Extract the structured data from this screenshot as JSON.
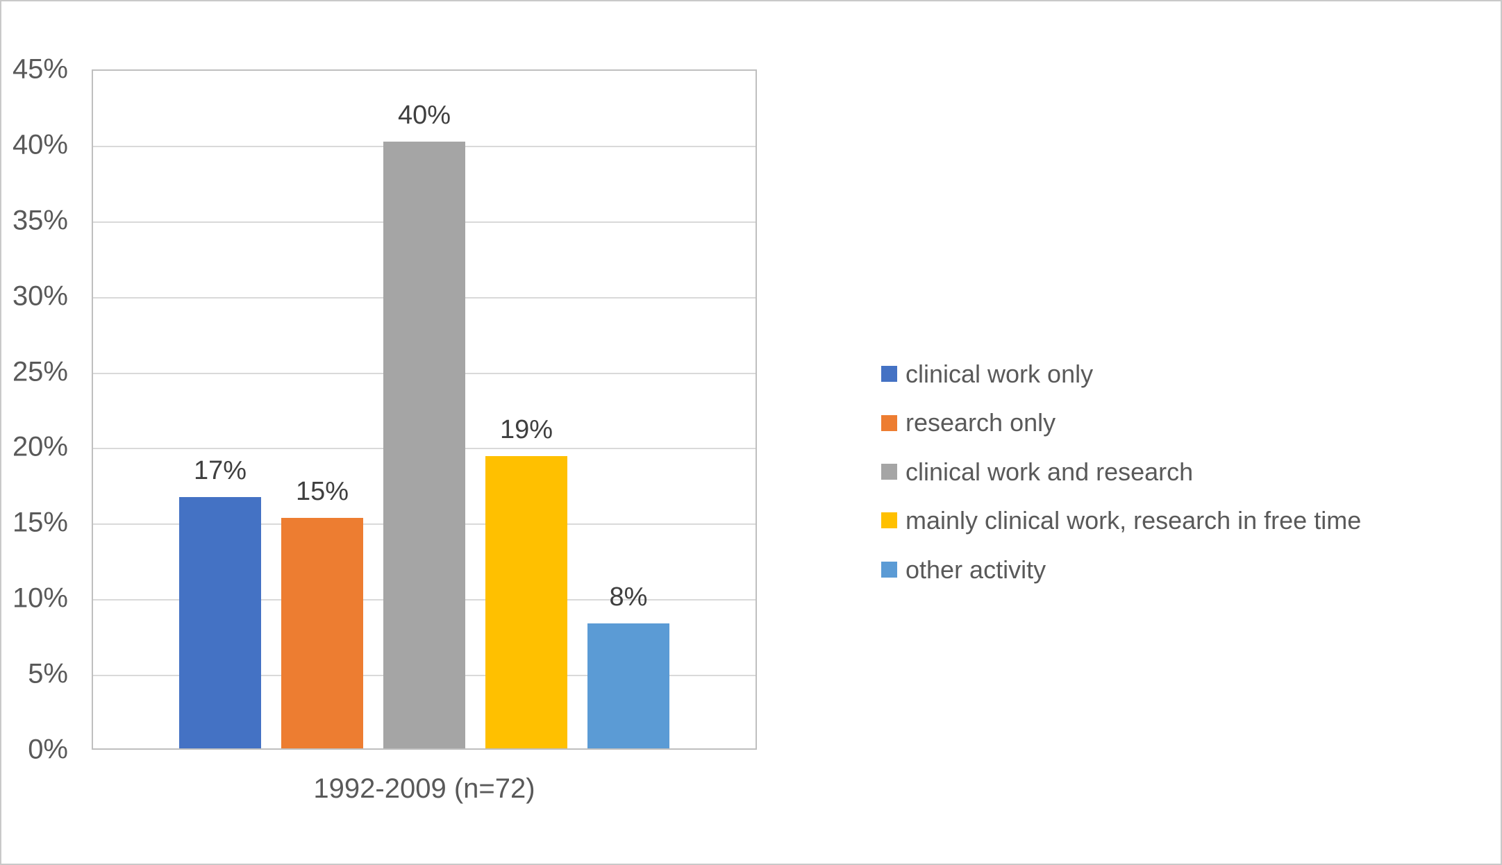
{
  "chart_data": {
    "type": "bar",
    "title": "",
    "categories": [
      "1992-2009 (n=72)"
    ],
    "series": [
      {
        "name": "clinical work only",
        "color": "#4472C4",
        "value": 16.7,
        "data_label": "17%"
      },
      {
        "name": "research only",
        "color": "#ED7D31",
        "value": 15.3,
        "data_label": "15%"
      },
      {
        "name": "clinical work and research",
        "color": "#A5A5A5",
        "value": 40.3,
        "data_label": "40%"
      },
      {
        "name": "mainly clinical work, research in free time",
        "color": "#FFC000",
        "value": 19.4,
        "data_label": "19%"
      },
      {
        "name": "other activity",
        "color": "#5B9BD5",
        "value": 8.3,
        "data_label": "8%"
      }
    ],
    "x_label": "1992-2009 (n=72)",
    "y_axis": {
      "min": 0,
      "max": 45,
      "tick_step": 5,
      "tick_labels": [
        "45%",
        "40%",
        "35%",
        "30%",
        "25%",
        "20%",
        "15%",
        "10%",
        "5%",
        "0%"
      ]
    },
    "legend_position": "right",
    "grid": true,
    "layout_colors": {
      "gridline": "#d9d9d9",
      "plot_border": "#bfbfbf",
      "tick_text": "#595959",
      "data_label_text": "#3f3f3f"
    }
  }
}
